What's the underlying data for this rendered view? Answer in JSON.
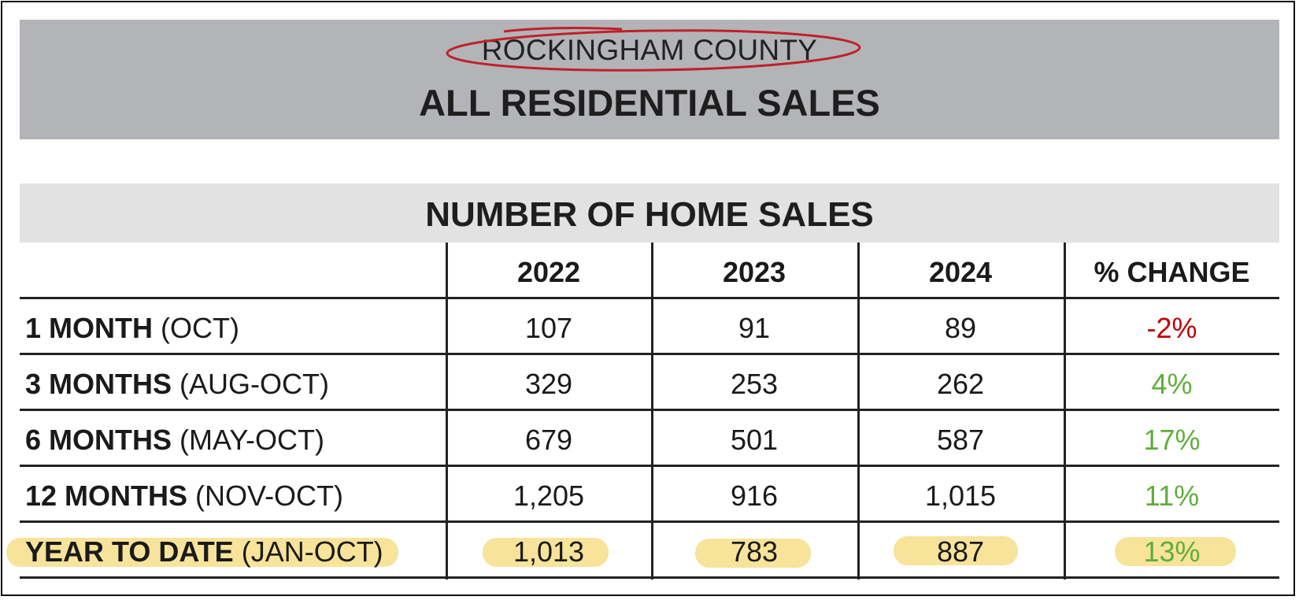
{
  "header": {
    "county": "ROCKINGHAM COUNTY",
    "title": "ALL RESIDENTIAL SALES"
  },
  "section": {
    "title": "NUMBER OF HOME SALES"
  },
  "table": {
    "columns": [
      "",
      "2022",
      "2023",
      "2024",
      "% CHANGE"
    ],
    "rows": [
      {
        "label_bold": "1 MONTH",
        "label_rest": " (OCT)",
        "v2022": "107",
        "v2023": "91",
        "v2024": "89",
        "change": "-2%"
      },
      {
        "label_bold": "3 MONTHS",
        "label_rest": " (AUG-OCT)",
        "v2022": "329",
        "v2023": "253",
        "v2024": "262",
        "change": "4%"
      },
      {
        "label_bold": "6 MONTHS",
        "label_rest": " (MAY-OCT)",
        "v2022": "679",
        "v2023": "501",
        "v2024": "587",
        "change": "17%"
      },
      {
        "label_bold": "12 MONTHS",
        "label_rest": " (NOV-OCT)",
        "v2022": "1,205",
        "v2023": "916",
        "v2024": "1,015",
        "change": "11%"
      },
      {
        "label_bold": "YEAR TO DATE",
        "label_rest": " (JAN-OCT)",
        "v2022": "1,013",
        "v2023": "783",
        "v2024": "887",
        "change": "13%"
      }
    ]
  },
  "colors": {
    "header_bg": "#b3b4b7",
    "subheader_bg": "#e2e2e3",
    "negative": "#c00000",
    "positive": "#5fae3a",
    "annotation_circle": "#c0202a",
    "annotation_highlight": "#f7e39a"
  }
}
